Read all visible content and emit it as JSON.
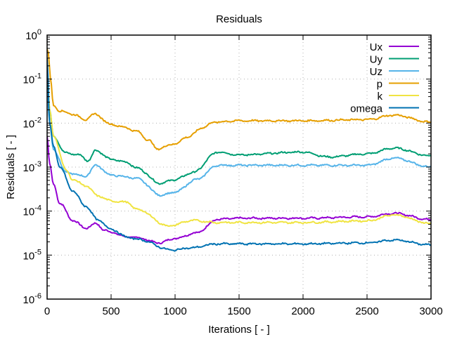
{
  "chart_data": {
    "type": "line",
    "title": "Residuals",
    "xlabel": "Iterations [ - ]",
    "ylabel": "Residuals [ - ]",
    "xlim": [
      0,
      3000
    ],
    "ylim": [
      1e-06,
      1
    ],
    "yscale": "log",
    "grid": true,
    "legend_position": "top-right",
    "x_ticks": [
      0,
      500,
      1000,
      1500,
      2000,
      2500,
      3000
    ],
    "x_tick_labels": [
      "0",
      "500",
      "1000",
      "1500",
      "2000",
      "2500",
      "3000"
    ],
    "y_tick_exponents": [
      "0",
      "-1",
      "-2",
      "-3",
      "-4",
      "-5",
      "-6"
    ],
    "y_tick_base": "10",
    "series": [
      {
        "name": "Ux",
        "color": "#9400d3",
        "x": [
          0,
          20,
          50,
          100,
          200,
          300,
          380,
          450,
          500,
          620,
          700,
          875,
          1000,
          1165,
          1335,
          1500,
          2000,
          2500,
          2710,
          3000
        ],
        "values": [
          0.005,
          0.0012,
          0.00041,
          0.00015,
          6.2e-05,
          4.1e-05,
          5.2e-05,
          3.7e-05,
          3.3e-05,
          2.6e-05,
          2.5e-05,
          1.9e-05,
          2.4e-05,
          3.2e-05,
          6.5e-05,
          6.9e-05,
          6.9e-05,
          7.4e-05,
          8.9e-05,
          6.4e-05
        ]
      },
      {
        "name": "Uy",
        "color": "#009e73",
        "x": [
          0,
          20,
          50,
          143,
          250,
          320,
          380,
          500,
          620,
          700,
          885,
          1000,
          1137,
          1335,
          1500,
          2000,
          2200,
          2500,
          2710,
          3000
        ],
        "values": [
          0.1,
          0.02,
          0.005,
          0.0021,
          0.0019,
          0.0014,
          0.0024,
          0.0015,
          0.0013,
          0.00095,
          0.00043,
          0.00052,
          0.00075,
          0.0022,
          0.0019,
          0.0022,
          0.0017,
          0.002,
          0.0027,
          0.0018
        ]
      },
      {
        "name": "Uz",
        "color": "#56b4e9",
        "x": [
          0,
          20,
          50,
          150,
          300,
          380,
          500,
          620,
          700,
          890,
          1000,
          1165,
          1335,
          1500,
          2000,
          2500,
          2710,
          3000
        ],
        "values": [
          0.06,
          0.01,
          0.0025,
          0.00075,
          0.00062,
          0.0011,
          0.00066,
          0.0006,
          0.00055,
          0.00023,
          0.00027,
          0.00052,
          0.0011,
          0.0011,
          0.0011,
          0.0011,
          0.0016,
          0.001
        ]
      },
      {
        "name": "p",
        "color": "#e69f00",
        "x": [
          0,
          10,
          25,
          50,
          100,
          200,
          300,
          370,
          500,
          600,
          700,
          800,
          857,
          1000,
          1100,
          1225,
          1300,
          1500,
          2000,
          2500,
          2710,
          3000
        ],
        "values": [
          0.48,
          0.4,
          0.11,
          0.025,
          0.019,
          0.016,
          0.012,
          0.016,
          0.0094,
          0.0081,
          0.0065,
          0.004,
          0.0026,
          0.0034,
          0.0049,
          0.0081,
          0.0105,
          0.0113,
          0.0113,
          0.012,
          0.0152,
          0.0105
        ]
      },
      {
        "name": "k",
        "color": "#f0e442",
        "x": [
          0,
          20,
          50,
          150,
          200,
          300,
          400,
          500,
          620,
          700,
          950,
          1137,
          1335,
          1500,
          2000,
          2500,
          2710,
          3000
        ],
        "values": [
          0.2,
          0.02,
          0.005,
          0.00085,
          0.00052,
          0.00038,
          0.00022,
          0.00017,
          0.00016,
          0.00011,
          4.6e-05,
          6.1e-05,
          5.5e-05,
          5.5e-05,
          5.5e-05,
          6e-05,
          8.2e-05,
          5.2e-05
        ]
      },
      {
        "name": "omega",
        "color": "#0072b2",
        "x": [
          0,
          20,
          50,
          100,
          200,
          300,
          400,
          500,
          620,
          700,
          980,
          1110,
          1335,
          1500,
          2000,
          2500,
          2710,
          3000
        ],
        "values": [
          0.3,
          0.01,
          0.003,
          0.00099,
          0.00029,
          0.00013,
          6.2e-05,
          3.9e-05,
          2.6e-05,
          2.3e-05,
          1.3e-05,
          1.45e-05,
          1.8e-05,
          1.8e-05,
          1.8e-05,
          1.9e-05,
          2.2e-05,
          1.7e-05
        ]
      }
    ]
  }
}
